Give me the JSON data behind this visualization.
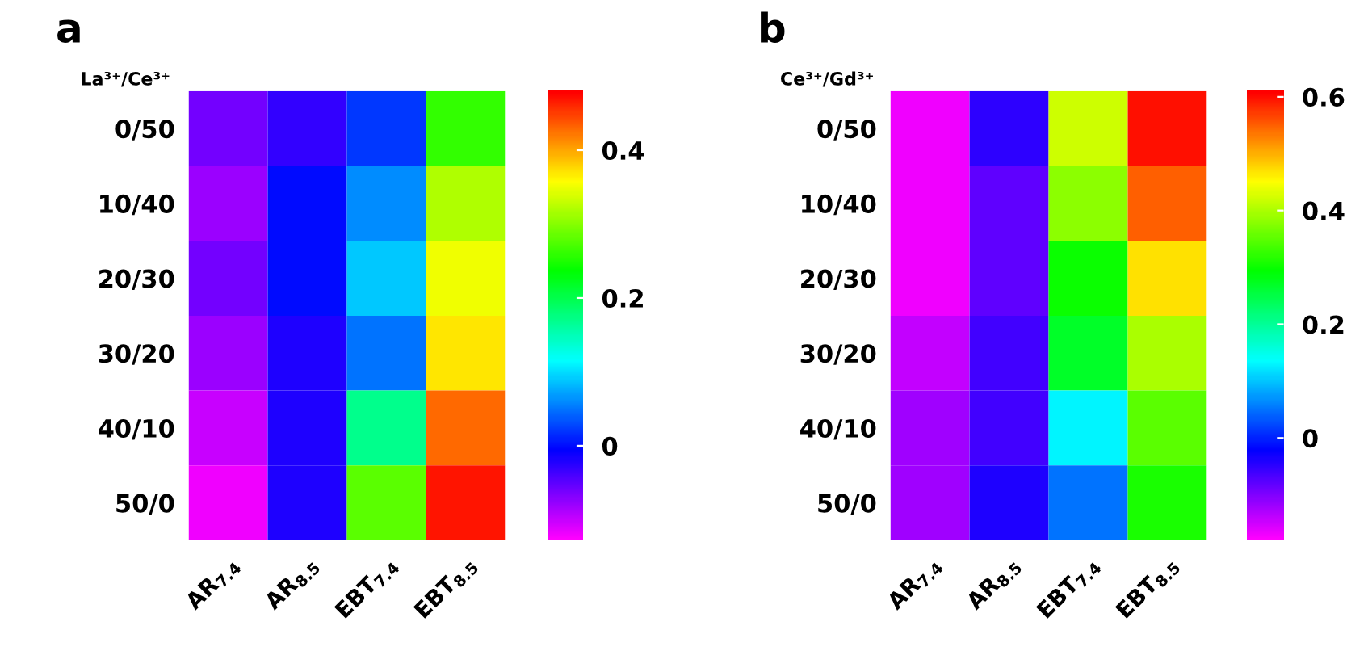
{
  "chart_data": [
    {
      "type": "heatmap",
      "title": "a",
      "ylabel": "La³⁺/Ce³⁺",
      "categories": [
        "AR$_{7.4}$",
        "AR$_{8.5}$",
        "EBT$_{7.4}$",
        "EBT$_{8.5}$"
      ],
      "y_categories": [
        "0/50",
        "10/40",
        "20/30",
        "30/20",
        "40/10",
        "50/0"
      ],
      "cells": [
        [
          -0.06,
          -0.03,
          0.02,
          0.26
        ],
        [
          -0.08,
          0.0,
          0.06,
          0.32
        ],
        [
          -0.06,
          0.0,
          0.09,
          0.35
        ],
        [
          -0.08,
          -0.02,
          0.05,
          0.37
        ],
        [
          -0.1,
          -0.02,
          0.17,
          0.43
        ],
        [
          -0.12,
          -0.02,
          0.28,
          0.47
        ]
      ],
      "clim": [
        -0.128,
        0.48
      ],
      "cticks": [
        0,
        0.2,
        0.4
      ]
    },
    {
      "type": "heatmap",
      "title": "b",
      "ylabel": "Ce³⁺/Gd³⁺",
      "categories": [
        "AR$_{7.4}$",
        "AR$_{8.5}$",
        "EBT$_{7.4}$",
        "EBT$_{8.5}$"
      ],
      "y_categories": [
        "0/50",
        "10/40",
        "20/30",
        "30/20",
        "40/10",
        "50/0"
      ],
      "cells": [
        [
          -0.17,
          -0.05,
          0.42,
          0.6
        ],
        [
          -0.17,
          -0.08,
          0.38,
          0.55
        ],
        [
          -0.17,
          -0.08,
          0.3,
          0.47
        ],
        [
          -0.14,
          -0.06,
          0.27,
          0.4
        ],
        [
          -0.12,
          -0.06,
          0.13,
          0.35
        ],
        [
          -0.12,
          -0.04,
          0.05,
          0.31
        ]
      ],
      "clim": [
        -0.18,
        0.61
      ],
      "cticks": [
        0,
        0.2,
        0.4,
        0.6
      ]
    }
  ]
}
